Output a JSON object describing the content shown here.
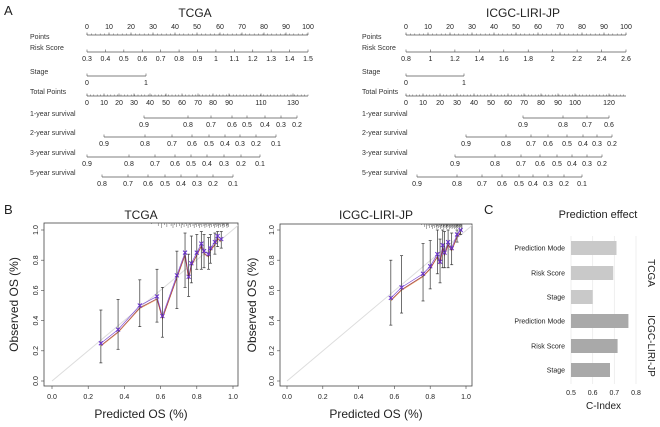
{
  "panel_labels": [
    "A",
    "B",
    "C"
  ],
  "chart_data": [
    {
      "type": "nomogram",
      "title": "TCGA",
      "rows": [
        {
          "label": "Points",
          "ticks": [
            "0",
            "10",
            "20",
            "30",
            "40",
            "50",
            "60",
            "70",
            "80",
            "90",
            "100"
          ]
        },
        {
          "label": "Risk Score",
          "ticks": [
            "0.3",
            "0.4",
            "0.5",
            "0.6",
            "0.7",
            "0.8",
            "0.9",
            "1",
            "1.1",
            "1.2",
            "1.3",
            "1.4",
            "1.5"
          ]
        },
        {
          "label": "Stage",
          "ticks": [
            "0",
            "1"
          ]
        },
        {
          "label": "Total Points",
          "ticks": [
            "0",
            "10",
            "20",
            "30",
            "40",
            "50",
            "60",
            "70",
            "80",
            "90",
            "110",
            "130"
          ]
        },
        {
          "label": "1-year survival",
          "ticks": [
            "0.9",
            "0.8",
            "0.7",
            "0.6",
            "0.5",
            "0.4",
            "0.3",
            "0.2"
          ]
        },
        {
          "label": "2-year survival",
          "ticks": [
            "0.9",
            "0.8",
            "0.7",
            "0.6",
            "0.5",
            "0.4",
            "0.3",
            "0.2",
            "0.1"
          ]
        },
        {
          "label": "3-year survival",
          "ticks": [
            "0.9",
            "0.8",
            "0.7",
            "0.6",
            "0.5",
            "0.4",
            "0.3",
            "0.2",
            "0.1"
          ]
        },
        {
          "label": "5-year survival",
          "ticks": [
            "0.8",
            "0.7",
            "0.6",
            "0.5",
            "0.4",
            "0.3",
            "0.2",
            "0.1"
          ]
        }
      ]
    },
    {
      "type": "nomogram",
      "title": "ICGC-LIRI-JP",
      "rows": [
        {
          "label": "Points",
          "ticks": [
            "0",
            "10",
            "20",
            "30",
            "40",
            "50",
            "60",
            "70",
            "80",
            "90",
            "100"
          ]
        },
        {
          "label": "Risk Score",
          "ticks": [
            "0.8",
            "1",
            "1.2",
            "1.4",
            "1.6",
            "1.8",
            "2",
            "2.2",
            "2.4",
            "2.6"
          ]
        },
        {
          "label": "Stage",
          "ticks": [
            "0",
            "1"
          ]
        },
        {
          "label": "Total Points",
          "ticks": [
            "0",
            "10",
            "20",
            "30",
            "40",
            "50",
            "60",
            "70",
            "80",
            "90",
            "100",
            "120"
          ]
        },
        {
          "label": "1-year survival",
          "ticks": [
            "0.9",
            "0.8",
            "0.7",
            "0.6"
          ]
        },
        {
          "label": "2-year survival",
          "ticks": [
            "0.9",
            "0.8",
            "0.7",
            "0.6",
            "0.5",
            "0.4",
            "0.3",
            "0.2"
          ]
        },
        {
          "label": "3-year survival",
          "ticks": [
            "0.9",
            "0.8",
            "0.7",
            "0.6",
            "0.5",
            "0.4",
            "0.3",
            "0.2"
          ]
        },
        {
          "label": "5-year survival",
          "ticks": [
            "0.9",
            "0.8",
            "0.7",
            "0.6",
            "0.5",
            "0.4",
            "0.3",
            "0.2",
            "0.1"
          ]
        }
      ]
    },
    {
      "type": "scatter",
      "title": "TCGA",
      "xlabel": "Predicted OS (%)",
      "ylabel": "Observed OS (%)",
      "xlim": [
        0,
        1
      ],
      "ylim": [
        0,
        1
      ],
      "xticks": [
        "0.0",
        "0.2",
        "0.4",
        "0.6",
        "0.8",
        "1.0"
      ],
      "yticks": [
        "0.0",
        "0.2",
        "0.4",
        "0.6",
        "0.8",
        "1.0"
      ],
      "points": [
        {
          "x": 0.27,
          "y": 0.25,
          "lo": 0.12,
          "hi": 0.47
        },
        {
          "x": 0.365,
          "y": 0.34,
          "lo": 0.21,
          "hi": 0.54
        },
        {
          "x": 0.485,
          "y": 0.5,
          "lo": 0.36,
          "hi": 0.67
        },
        {
          "x": 0.58,
          "y": 0.56,
          "lo": 0.39,
          "hi": 0.74
        },
        {
          "x": 0.61,
          "y": 0.43,
          "lo": 0.29,
          "hi": 0.62
        },
        {
          "x": 0.69,
          "y": 0.7,
          "lo": 0.48,
          "hi": 0.86
        },
        {
          "x": 0.735,
          "y": 0.85,
          "lo": 0.62,
          "hi": 0.98
        },
        {
          "x": 0.755,
          "y": 0.69,
          "lo": 0.56,
          "hi": 0.84
        },
        {
          "x": 0.77,
          "y": 0.78,
          "lo": 0.65,
          "hi": 0.96
        },
        {
          "x": 0.8,
          "y": 0.85,
          "lo": 0.74,
          "hi": 0.97
        },
        {
          "x": 0.825,
          "y": 0.91,
          "lo": 0.74,
          "hi": 0.99
        },
        {
          "x": 0.84,
          "y": 0.86,
          "lo": 0.75,
          "hi": 0.97
        },
        {
          "x": 0.865,
          "y": 0.84,
          "lo": 0.74,
          "hi": 0.95
        },
        {
          "x": 0.875,
          "y": 0.88,
          "lo": 0.78,
          "hi": 0.97
        },
        {
          "x": 0.9,
          "y": 0.92,
          "lo": 0.84,
          "hi": 0.98
        },
        {
          "x": 0.915,
          "y": 0.96,
          "lo": 0.89,
          "hi": 0.99
        },
        {
          "x": 0.935,
          "y": 0.94,
          "lo": 0.88,
          "hi": 0.99
        }
      ],
      "series_colors": [
        "#6a2fd0",
        "#e8a24a",
        "#8b1a3a"
      ]
    },
    {
      "type": "scatter",
      "title": "ICGC-LIRI-JP",
      "xlabel": "Predicted OS (%)",
      "ylabel": "Observed OS (%)",
      "xlim": [
        0,
        1
      ],
      "ylim": [
        0,
        1
      ],
      "xticks": [
        "0.0",
        "0.2",
        "0.4",
        "0.6",
        "0.8",
        "1.0"
      ],
      "yticks": [
        "0.0",
        "0.2",
        "0.4",
        "0.6",
        "0.8",
        "1.0"
      ],
      "points": [
        {
          "x": 0.58,
          "y": 0.55,
          "lo": 0.37,
          "hi": 0.8
        },
        {
          "x": 0.64,
          "y": 0.62,
          "lo": 0.45,
          "hi": 0.83
        },
        {
          "x": 0.76,
          "y": 0.71,
          "lo": 0.53,
          "hi": 0.91
        },
        {
          "x": 0.8,
          "y": 0.76,
          "lo": 0.61,
          "hi": 0.93
        },
        {
          "x": 0.84,
          "y": 0.84,
          "lo": 0.71,
          "hi": 1.0
        },
        {
          "x": 0.855,
          "y": 0.79,
          "lo": 0.65,
          "hi": 0.94
        },
        {
          "x": 0.87,
          "y": 0.9,
          "lo": 0.75,
          "hi": 1.0
        },
        {
          "x": 0.88,
          "y": 0.85,
          "lo": 0.75,
          "hi": 0.99
        },
        {
          "x": 0.9,
          "y": 0.92,
          "lo": 0.75,
          "hi": 1.0
        },
        {
          "x": 0.92,
          "y": 0.88,
          "lo": 0.77,
          "hi": 0.98
        },
        {
          "x": 0.95,
          "y": 0.97,
          "lo": 0.92,
          "hi": 1.0
        },
        {
          "x": 0.97,
          "y": 1.0,
          "lo": 0.97,
          "hi": 1.0
        }
      ],
      "series_colors": [
        "#6a2fd0",
        "#e8a24a",
        "#8b1a3a"
      ]
    },
    {
      "type": "bar",
      "title": "Prediction effect",
      "xlabel": "C-Index",
      "xlim": [
        0.5,
        0.8
      ],
      "xticks": [
        "0.5",
        "0.6",
        "0.7",
        "0.8"
      ],
      "groups": [
        {
          "name": "TCGA",
          "color": "#c9c9c9",
          "categories": [
            "Prediction Mode",
            "Risk Score",
            "Stage"
          ],
          "values": [
            0.71,
            0.695,
            0.6
          ]
        },
        {
          "name": "ICGC-LIRI-JP",
          "color": "#a9a9a9",
          "categories": [
            "Prediction Mode",
            "Risk Score",
            "Stage"
          ],
          "values": [
            0.765,
            0.715,
            0.68
          ]
        }
      ]
    }
  ]
}
